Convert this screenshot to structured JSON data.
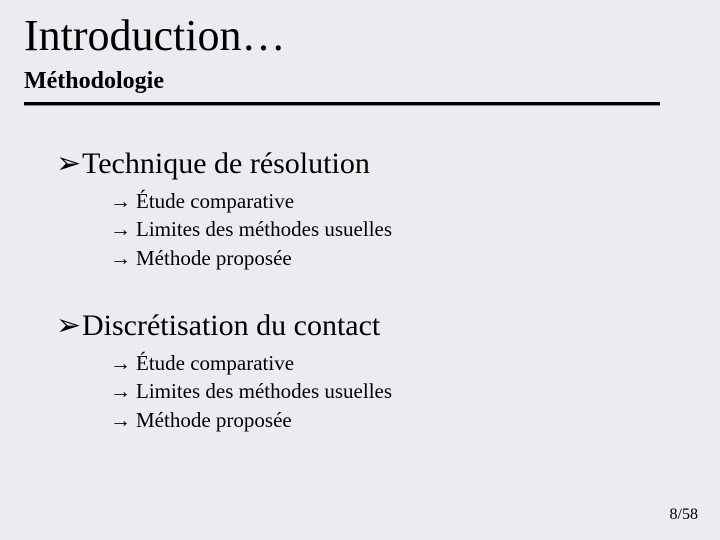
{
  "title": "Introduction…",
  "subtitle": "Méthodologie",
  "bullets": {
    "chevron": "➢",
    "arrow": "→"
  },
  "sections": [
    {
      "heading": "Technique de résolution",
      "items": [
        "Étude comparative",
        "Limites des méthodes usuelles",
        "Méthode proposée"
      ]
    },
    {
      "heading": "Discrétisation du contact",
      "items": [
        "Étude comparative",
        "Limites des méthodes usuelles",
        "Méthode proposée"
      ]
    }
  ],
  "page": {
    "current": 8,
    "total": 58,
    "sep": "/"
  }
}
